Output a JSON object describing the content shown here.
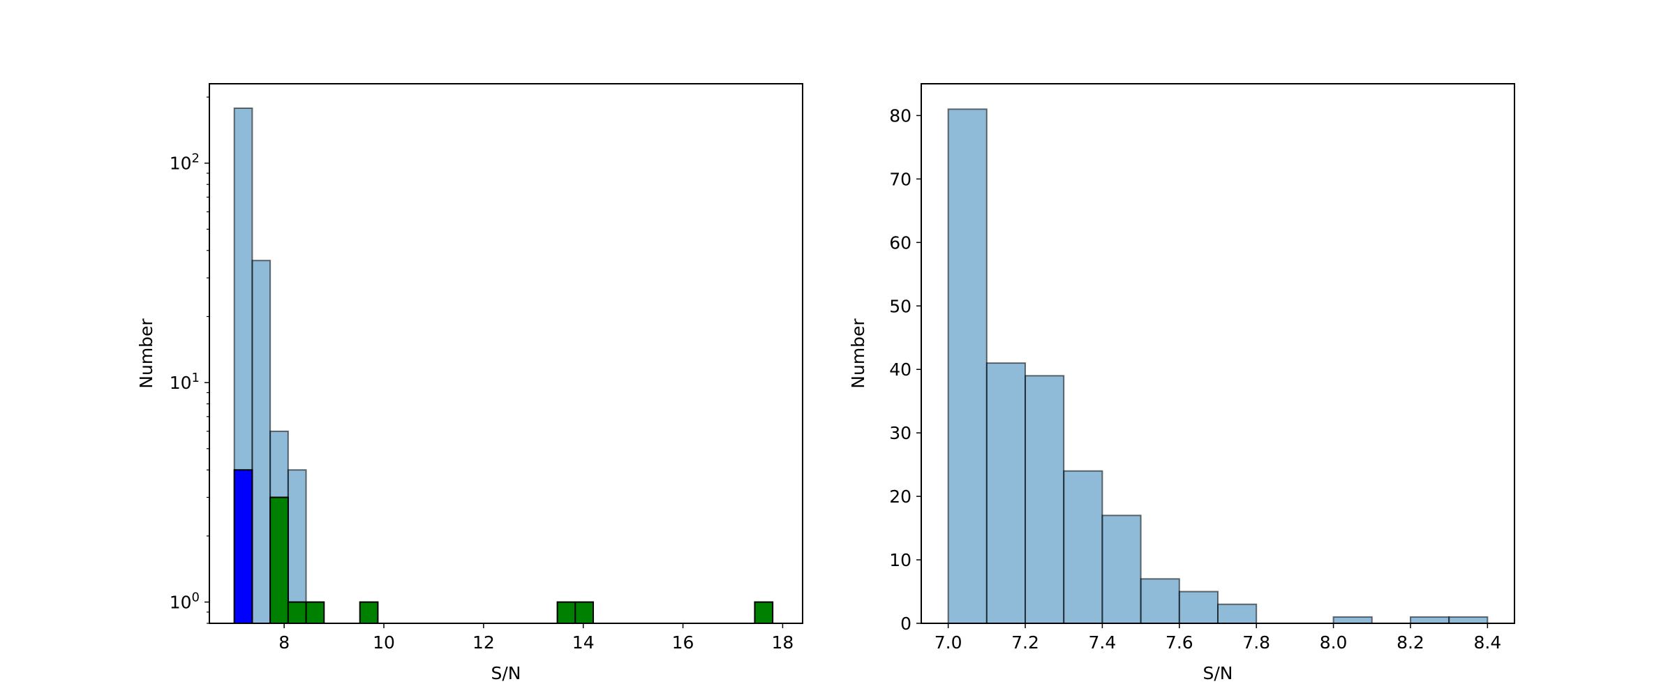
{
  "chart_data": [
    {
      "type": "bar",
      "xlabel": "S/N",
      "ylabel": "Number",
      "xlim": [
        6.5,
        18.4
      ],
      "ylim": [
        0.8,
        230
      ],
      "yscale": "log",
      "x_ticks": [
        8,
        10,
        12,
        14,
        16,
        18
      ],
      "y_ticks": [
        {
          "value": 1,
          "base": "10",
          "exp": "0"
        },
        {
          "value": 10,
          "base": "10",
          "exp": "1"
        },
        {
          "value": 100,
          "base": "10",
          "exp": "2"
        }
      ],
      "grid": false,
      "series": [
        {
          "color": "#1f77b4",
          "bin_width": 0.36,
          "bins": [
            {
              "x": 7.0,
              "value": 178
            },
            {
              "x": 7.36,
              "value": 36
            },
            {
              "x": 7.72,
              "value": 6
            },
            {
              "x": 8.08,
              "value": 4
            }
          ]
        },
        {
          "color": "#0000ff",
          "bin_width": 0.36,
          "bins": [
            {
              "x": 7.0,
              "value": 4
            }
          ]
        },
        {
          "color": "#008000",
          "bin_width": 0.36,
          "bins": [
            {
              "x": 7.72,
              "value": 3
            },
            {
              "x": 8.08,
              "value": 1
            },
            {
              "x": 8.44,
              "value": 1
            },
            {
              "x": 9.52,
              "value": 1
            },
            {
              "x": 13.48,
              "value": 1
            },
            {
              "x": 13.84,
              "value": 1
            },
            {
              "x": 17.44,
              "value": 1
            }
          ]
        }
      ]
    },
    {
      "type": "bar",
      "xlabel": "S/N",
      "ylabel": "Number",
      "xlim": [
        6.93,
        8.47
      ],
      "ylim": [
        0,
        85
      ],
      "yscale": "linear",
      "x_ticks": [
        "7.0",
        "7.2",
        "7.4",
        "7.6",
        "7.8",
        "8.0",
        "8.2",
        "8.4"
      ],
      "y_ticks": [
        "0",
        "10",
        "20",
        "30",
        "40",
        "50",
        "60",
        "70",
        "80"
      ],
      "grid": false,
      "series": [
        {
          "color": "#1f77b4",
          "bin_width": 0.1,
          "bins": [
            {
              "x": 7.0,
              "value": 81
            },
            {
              "x": 7.1,
              "value": 41
            },
            {
              "x": 7.2,
              "value": 39
            },
            {
              "x": 7.3,
              "value": 24
            },
            {
              "x": 7.4,
              "value": 17
            },
            {
              "x": 7.5,
              "value": 7
            },
            {
              "x": 7.6,
              "value": 5
            },
            {
              "x": 7.7,
              "value": 3
            },
            {
              "x": 7.8,
              "value": 0
            },
            {
              "x": 7.9,
              "value": 0
            },
            {
              "x": 8.0,
              "value": 1
            },
            {
              "x": 8.1,
              "value": 0
            },
            {
              "x": 8.2,
              "value": 1
            },
            {
              "x": 8.3,
              "value": 1
            }
          ]
        }
      ]
    }
  ]
}
